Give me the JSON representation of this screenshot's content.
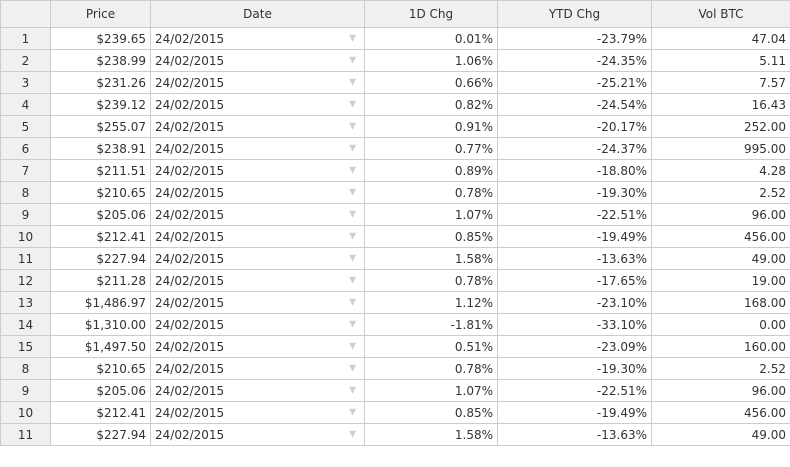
{
  "grid": {
    "columns": [
      "",
      "Price",
      "Date",
      "1D Chg",
      "YTD Chg",
      "Vol BTC"
    ],
    "rows": [
      {
        "n": "1",
        "price": "$239.65",
        "date": "24/02/2015",
        "d1": "0.01%",
        "ytd": "-23.79%",
        "vol": "47.04"
      },
      {
        "n": "2",
        "price": "$238.99",
        "date": "24/02/2015",
        "d1": "1.06%",
        "ytd": "-24.35%",
        "vol": "5.11"
      },
      {
        "n": "3",
        "price": "$231.26",
        "date": "24/02/2015",
        "d1": "0.66%",
        "ytd": "-25.21%",
        "vol": "7.57"
      },
      {
        "n": "4",
        "price": "$239.12",
        "date": "24/02/2015",
        "d1": "0.82%",
        "ytd": "-24.54%",
        "vol": "16.43"
      },
      {
        "n": "5",
        "price": "$255.07",
        "date": "24/02/2015",
        "d1": "0.91%",
        "ytd": "-20.17%",
        "vol": "252.00"
      },
      {
        "n": "6",
        "price": "$238.91",
        "date": "24/02/2015",
        "d1": "0.77%",
        "ytd": "-24.37%",
        "vol": "995.00"
      },
      {
        "n": "7",
        "price": "$211.51",
        "date": "24/02/2015",
        "d1": "0.89%",
        "ytd": "-18.80%",
        "vol": "4.28"
      },
      {
        "n": "8",
        "price": "$210.65",
        "date": "24/02/2015",
        "d1": "0.78%",
        "ytd": "-19.30%",
        "vol": "2.52"
      },
      {
        "n": "9",
        "price": "$205.06",
        "date": "24/02/2015",
        "d1": "1.07%",
        "ytd": "-22.51%",
        "vol": "96.00"
      },
      {
        "n": "10",
        "price": "$212.41",
        "date": "24/02/2015",
        "d1": "0.85%",
        "ytd": "-19.49%",
        "vol": "456.00"
      },
      {
        "n": "11",
        "price": "$227.94",
        "date": "24/02/2015",
        "d1": "1.58%",
        "ytd": "-13.63%",
        "vol": "49.00"
      },
      {
        "n": "12",
        "price": "$211.28",
        "date": "24/02/2015",
        "d1": "0.78%",
        "ytd": "-17.65%",
        "vol": "19.00"
      },
      {
        "n": "13",
        "price": "$1,486.97",
        "date": "24/02/2015",
        "d1": "1.12%",
        "ytd": "-23.10%",
        "vol": "168.00"
      },
      {
        "n": "14",
        "price": "$1,310.00",
        "date": "24/02/2015",
        "d1": "-1.81%",
        "ytd": "-33.10%",
        "vol": "0.00"
      },
      {
        "n": "15",
        "price": "$1,497.50",
        "date": "24/02/2015",
        "d1": "0.51%",
        "ytd": "-23.09%",
        "vol": "160.00"
      },
      {
        "n": "8",
        "price": "$210.65",
        "date": "24/02/2015",
        "d1": "0.78%",
        "ytd": "-19.30%",
        "vol": "2.52"
      },
      {
        "n": "9",
        "price": "$205.06",
        "date": "24/02/2015",
        "d1": "1.07%",
        "ytd": "-22.51%",
        "vol": "96.00"
      },
      {
        "n": "10",
        "price": "$212.41",
        "date": "24/02/2015",
        "d1": "0.85%",
        "ytd": "-19.49%",
        "vol": "456.00"
      },
      {
        "n": "11",
        "price": "$227.94",
        "date": "24/02/2015",
        "d1": "1.58%",
        "ytd": "-13.63%",
        "vol": "49.00"
      }
    ],
    "dropdown_icon": "triangle-down-icon",
    "colors": {
      "header_bg": "#f0f0f0",
      "border": "#cccccc",
      "text": "#333333",
      "arrow": "#cfcfcf"
    }
  }
}
